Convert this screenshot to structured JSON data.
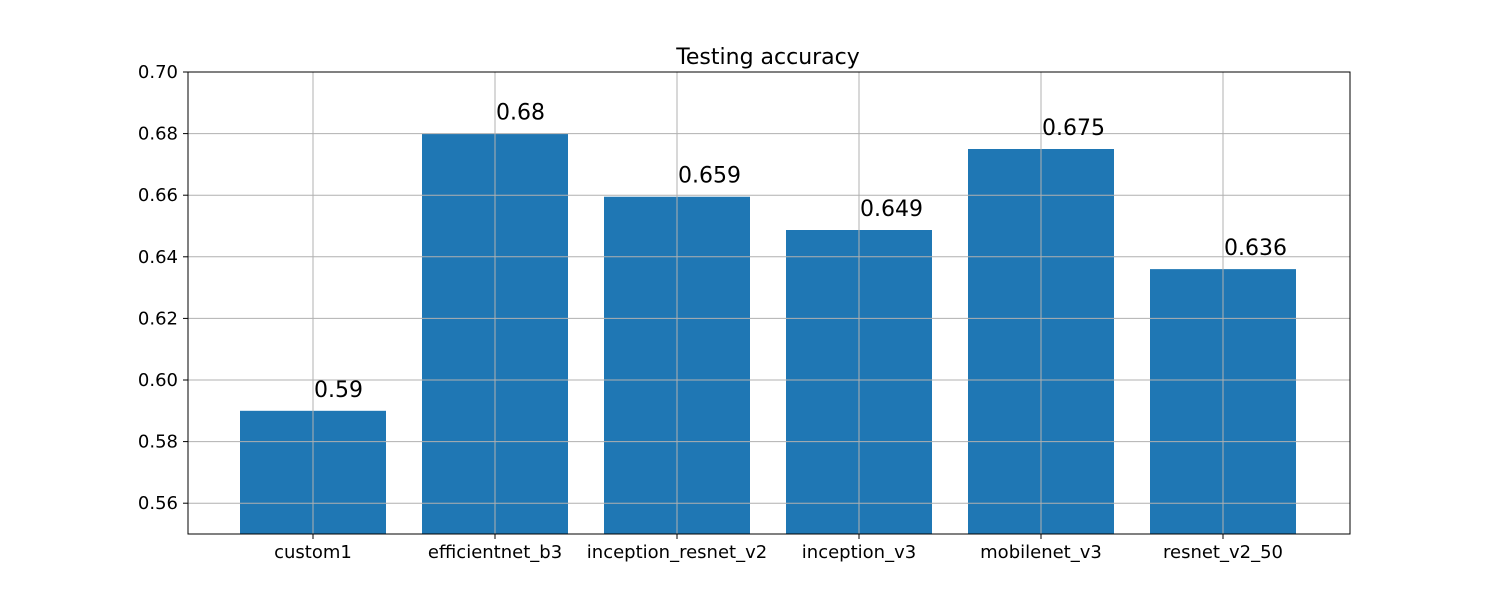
{
  "chart_data": {
    "type": "bar",
    "title": "Testing accuracy",
    "xlabel": "",
    "ylabel": "",
    "categories": [
      "custom1",
      "efficientnet_b3",
      "inception_resnet_v2",
      "inception_v3",
      "mobilenet_v3",
      "resnet_v2_50"
    ],
    "values": [
      0.59,
      0.68,
      0.6595,
      0.6487,
      0.675,
      0.636
    ],
    "data_labels": [
      "0.59",
      "0.68",
      "0.659",
      "0.649",
      "0.675",
      "0.636"
    ],
    "ylim": [
      0.55,
      0.7
    ],
    "yticks": [
      0.56,
      0.58,
      0.6,
      0.62,
      0.64,
      0.66,
      0.68,
      0.7
    ],
    "ytick_labels": [
      "0.56",
      "0.58",
      "0.60",
      "0.62",
      "0.64",
      "0.66",
      "0.68",
      "0.70"
    ],
    "grid": true,
    "bar_color": "#1f77b4",
    "grid_color": "#b0b0b0"
  }
}
